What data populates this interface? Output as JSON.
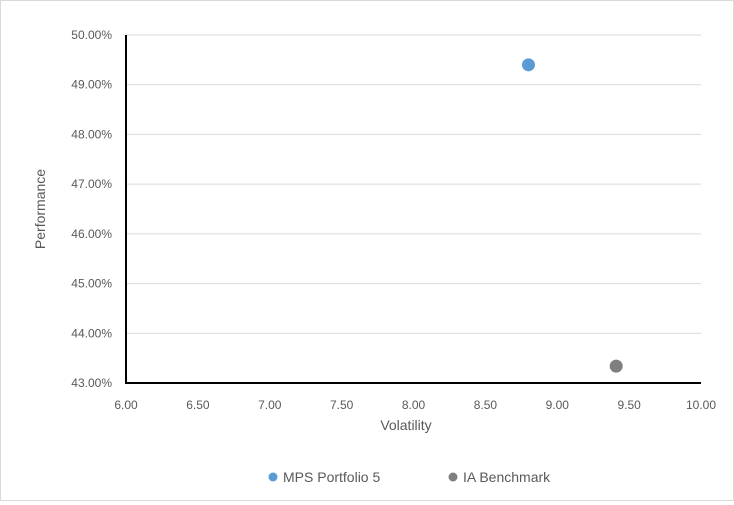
{
  "chart_data": {
    "type": "scatter",
    "title": "",
    "xlabel": "Volatility",
    "ylabel": "Performance",
    "xlim": [
      6.0,
      10.0
    ],
    "ylim": [
      43.0,
      50.0
    ],
    "x_ticks": [
      6.0,
      6.5,
      7.0,
      7.5,
      8.0,
      8.5,
      9.0,
      9.5,
      10.0
    ],
    "x_tick_labels": [
      "6.00",
      "6.50",
      "7.00",
      "7.50",
      "8.00",
      "8.50",
      "9.00",
      "9.50",
      "10.00"
    ],
    "y_ticks": [
      43.0,
      44.0,
      45.0,
      46.0,
      47.0,
      48.0,
      49.0,
      50.0
    ],
    "y_tick_labels": [
      "43.00%",
      "44.00%",
      "45.00%",
      "46.00%",
      "47.00%",
      "48.00%",
      "49.00%",
      "50.00%"
    ],
    "grid": "horizontal",
    "legend_position": "bottom",
    "series": [
      {
        "name": "MPS Portfolio 5",
        "color": "#5b9bd5",
        "points": [
          {
            "x": 8.8,
            "y": 49.4
          }
        ]
      },
      {
        "name": "IA Benchmark",
        "color": "#7f7f7f",
        "points": [
          {
            "x": 9.41,
            "y": 43.34
          }
        ]
      }
    ]
  }
}
